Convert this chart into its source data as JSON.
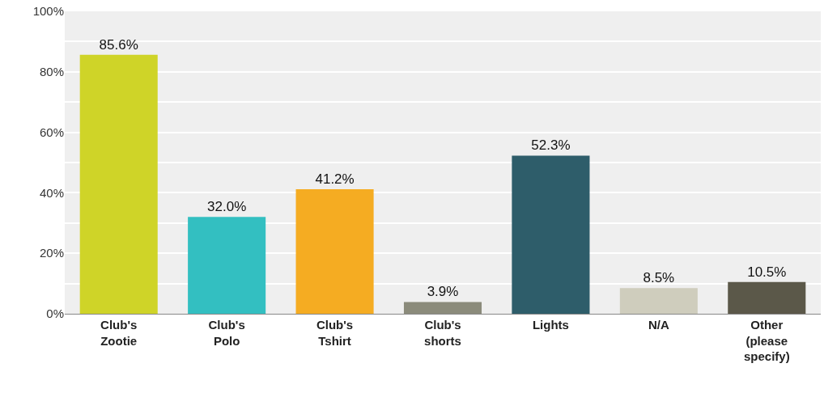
{
  "chart_data": {
    "type": "bar",
    "categories": [
      "Club's Zootie",
      "Club's Polo",
      "Club's Tshirt",
      "Club's shorts",
      "Lights",
      "N/A",
      "Other (please specify)"
    ],
    "values": [
      85.6,
      32.0,
      41.2,
      3.9,
      52.3,
      8.5,
      10.5
    ],
    "colors": [
      "#cfd428",
      "#33bfc1",
      "#f5ac22",
      "#8b8b7b",
      "#2e5d6a",
      "#cfcdbd",
      "#5b5849"
    ],
    "value_labels": [
      "85.6%",
      "32.0%",
      "41.2%",
      "3.9%",
      "52.3%",
      "8.5%",
      "10.5%"
    ],
    "ylim": [
      0,
      100
    ],
    "yticks": [
      {
        "value": 0,
        "label": "0%"
      },
      {
        "value": 10,
        "label": null
      },
      {
        "value": 20,
        "label": "20%"
      },
      {
        "value": 30,
        "label": null
      },
      {
        "value": 40,
        "label": "40%"
      },
      {
        "value": 50,
        "label": null
      },
      {
        "value": 60,
        "label": "60%"
      },
      {
        "value": 70,
        "label": null
      },
      {
        "value": 80,
        "label": "80%"
      },
      {
        "value": 90,
        "label": null
      },
      {
        "value": 100,
        "label": "100%"
      }
    ],
    "grid": "y"
  }
}
